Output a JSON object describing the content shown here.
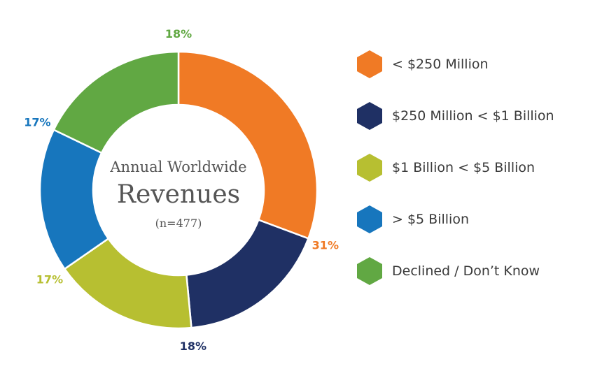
{
  "chart_data": {
    "type": "pie",
    "donut": true,
    "center_text": {
      "line1": "Annual Worldwide",
      "line2": "Revenues",
      "line3": "(n=477)"
    },
    "slices": [
      {
        "label": "< $250 Million",
        "value": 31,
        "display": "31%",
        "color": "#F07A25"
      },
      {
        "label": "$250 Million < $1 Billion",
        "value": 18,
        "display": "18%",
        "color": "#1F3064"
      },
      {
        "label": "$1 Billion < $5 Billion",
        "value": 17,
        "display": "17%",
        "color": "#B7BF31"
      },
      {
        "label": "> $5 Billion",
        "value": 17,
        "display": "17%",
        "color": "#1776BD"
      },
      {
        "label": "Declined / Don’t Know",
        "value": 18,
        "display": "18%",
        "color": "#61A843"
      }
    ],
    "legend_position": "right"
  }
}
